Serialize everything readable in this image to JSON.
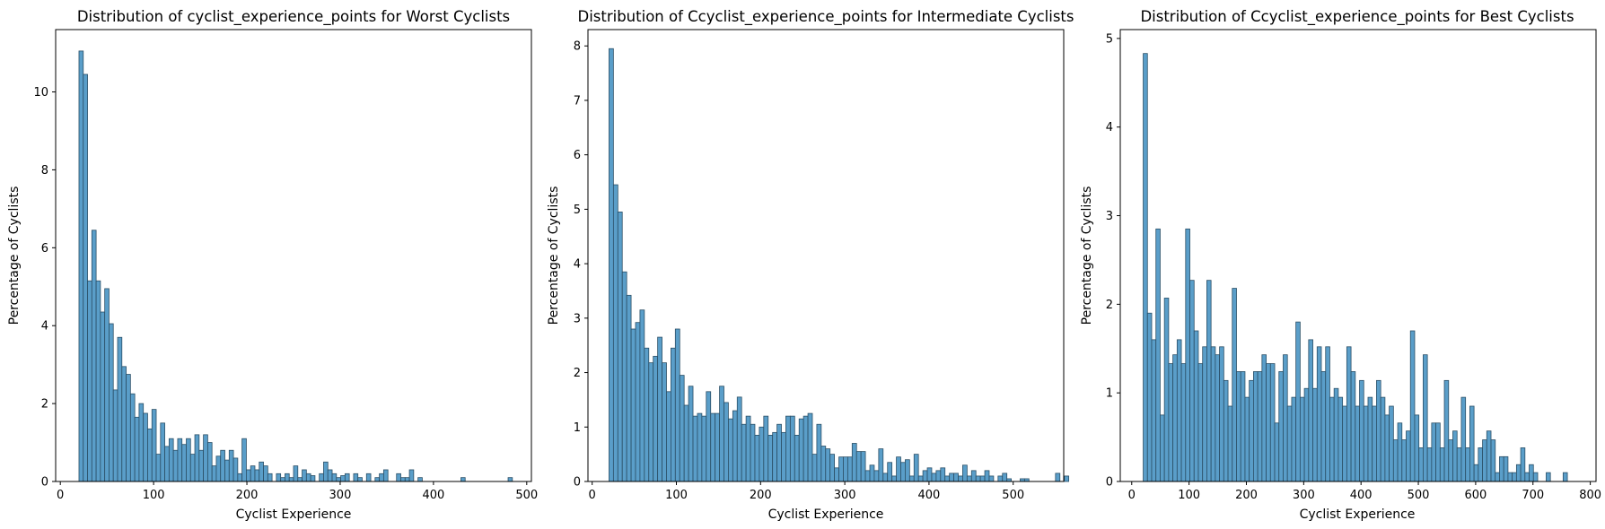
{
  "colors": {
    "bar_fill": "#5a9ec9",
    "bar_edge": "#2b4f66"
  },
  "chart_data": [
    {
      "type": "bar",
      "title": "Distribution of cyclist_experience_points for Worst Cyclists",
      "xlabel": "Cyclist Experience",
      "ylabel": "Percentage of Cyclists",
      "xlim": [
        -5,
        505
      ],
      "ylim": [
        0,
        11.6
      ],
      "xticks": [
        0,
        100,
        200,
        300,
        400,
        500
      ],
      "yticks": [
        0,
        2,
        4,
        6,
        8,
        10
      ],
      "grid": false,
      "bin_start": 20,
      "bin_width": 4.6,
      "values": [
        11.05,
        10.45,
        5.15,
        6.45,
        5.15,
        4.35,
        4.95,
        4.05,
        2.35,
        3.7,
        2.95,
        2.75,
        2.25,
        1.65,
        2.0,
        1.75,
        1.35,
        1.85,
        0.7,
        1.5,
        0.9,
        1.1,
        0.8,
        1.1,
        0.95,
        1.1,
        0.7,
        1.2,
        0.8,
        1.2,
        1.0,
        0.4,
        0.65,
        0.8,
        0.55,
        0.8,
        0.6,
        0.2,
        1.1,
        0.3,
        0.4,
        0.3,
        0.5,
        0.4,
        0.2,
        0.0,
        0.2,
        0.1,
        0.2,
        0.1,
        0.4,
        0.1,
        0.3,
        0.2,
        0.15,
        0.0,
        0.2,
        0.5,
        0.3,
        0.2,
        0.1,
        0.15,
        0.2,
        0.0,
        0.2,
        0.1,
        0.0,
        0.2,
        0.0,
        0.1,
        0.2,
        0.3,
        0.0,
        0.0,
        0.2,
        0.1,
        0.1,
        0.3,
        0.0,
        0.1,
        0.0,
        0.0,
        0.0,
        0.0,
        0.0,
        0.0,
        0.0,
        0.0,
        0.0,
        0.1,
        0.0,
        0.0,
        0.0,
        0.0,
        0.0,
        0.0,
        0.0,
        0.0,
        0.0,
        0.0,
        0.1
      ]
    },
    {
      "type": "bar",
      "title": "Distribution of Ccyclist_experience_points for Intermediate Cyclists",
      "xlabel": "Cyclist Experience",
      "ylabel": "Percentage of Cyclists",
      "xlim": [
        -5,
        560
      ],
      "ylim": [
        0,
        8.3
      ],
      "xticks": [
        0,
        100,
        200,
        300,
        400,
        500
      ],
      "yticks": [
        0,
        1,
        2,
        3,
        4,
        5,
        6,
        7,
        8
      ],
      "grid": false,
      "bin_start": 20,
      "bin_width": 5.25,
      "values": [
        7.95,
        5.45,
        4.95,
        3.85,
        3.42,
        2.8,
        2.92,
        3.15,
        2.45,
        2.18,
        2.3,
        2.65,
        2.18,
        1.65,
        2.45,
        2.8,
        1.95,
        1.4,
        1.75,
        1.2,
        1.25,
        1.2,
        1.65,
        1.25,
        1.25,
        1.75,
        1.45,
        1.15,
        1.3,
        1.55,
        1.05,
        1.2,
        1.05,
        0.85,
        1.0,
        1.2,
        0.85,
        0.9,
        1.05,
        0.9,
        1.2,
        1.2,
        0.85,
        1.15,
        1.2,
        1.25,
        0.5,
        1.05,
        0.65,
        0.6,
        0.5,
        0.25,
        0.45,
        0.45,
        0.45,
        0.7,
        0.55,
        0.55,
        0.2,
        0.3,
        0.2,
        0.6,
        0.15,
        0.35,
        0.1,
        0.45,
        0.35,
        0.4,
        0.1,
        0.5,
        0.1,
        0.2,
        0.25,
        0.15,
        0.2,
        0.25,
        0.1,
        0.15,
        0.15,
        0.1,
        0.3,
        0.1,
        0.2,
        0.1,
        0.1,
        0.2,
        0.1,
        0.0,
        0.1,
        0.15,
        0.05,
        0.0,
        0.0,
        0.05,
        0.05,
        0.0,
        0.0,
        0.0,
        0.0,
        0.0,
        0.0,
        0.15,
        0.0,
        0.1
      ]
    },
    {
      "type": "bar",
      "title": "Distribution of Ccyclist_experience_points for Best Cyclists",
      "xlabel": "Cyclist Experience",
      "ylabel": "Percentage of Cyclists",
      "xlim": [
        -20,
        810
      ],
      "ylim": [
        0,
        5.1
      ],
      "xticks": [
        0,
        100,
        200,
        300,
        400,
        500,
        600,
        700,
        800
      ],
      "yticks": [
        0,
        1,
        2,
        3,
        4,
        5
      ],
      "grid": false,
      "bin_start": 20,
      "bin_width": 7.4,
      "values": [
        4.83,
        1.9,
        1.6,
        2.85,
        0.75,
        2.07,
        1.33,
        1.43,
        1.6,
        1.33,
        2.85,
        2.27,
        1.7,
        1.33,
        1.52,
        2.27,
        1.52,
        1.43,
        1.52,
        1.14,
        0.85,
        2.18,
        1.24,
        1.24,
        0.95,
        1.14,
        1.24,
        1.24,
        1.43,
        1.33,
        1.33,
        0.66,
        1.24,
        1.43,
        0.85,
        0.95,
        1.8,
        0.95,
        1.05,
        1.6,
        1.05,
        1.52,
        1.24,
        1.52,
        0.95,
        1.05,
        0.95,
        0.85,
        1.52,
        1.24,
        0.85,
        1.14,
        0.85,
        0.95,
        0.85,
        1.14,
        0.95,
        0.75,
        0.85,
        0.47,
        0.66,
        0.47,
        0.57,
        1.7,
        0.75,
        0.38,
        1.43,
        0.38,
        0.66,
        0.66,
        0.38,
        1.14,
        0.47,
        0.57,
        0.38,
        0.95,
        0.38,
        0.85,
        0.19,
        0.38,
        0.47,
        0.57,
        0.47,
        0.1,
        0.28,
        0.28,
        0.1,
        0.1,
        0.19,
        0.38,
        0.1,
        0.19,
        0.1,
        0.0,
        0.0,
        0.1,
        0.0,
        0.0,
        0.0,
        0.1
      ]
    }
  ]
}
